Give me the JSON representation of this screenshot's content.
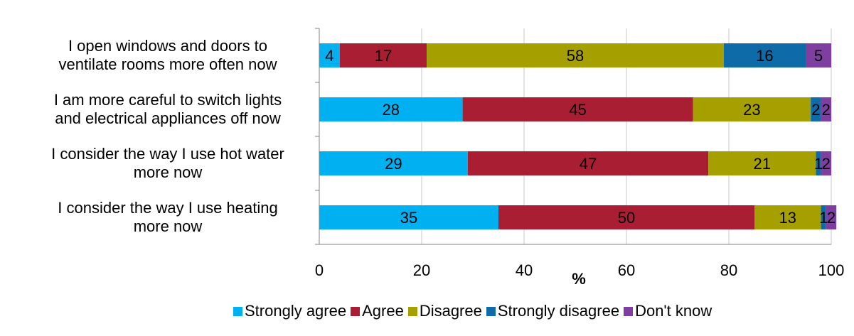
{
  "chart_data": {
    "type": "bar",
    "orientation": "horizontal",
    "stacked": true,
    "categories": [
      "I open windows and doors to ventilate rooms more often now",
      "I am more careful to switch lights and electrical appliances off now",
      "I consider the way I use hot water more now",
      "I consider the way I use heating more now"
    ],
    "category_lines": [
      [
        "I open windows and doors to",
        "ventilate rooms more often now"
      ],
      [
        "I am more careful to switch lights",
        "and electrical appliances off now"
      ],
      [
        "I consider the way I use hot water",
        "more now"
      ],
      [
        "I consider the way I use heating",
        "more now"
      ]
    ],
    "series": [
      {
        "name": "Strongly agree",
        "color": "#00B0F0",
        "values": [
          4,
          28,
          29,
          35
        ],
        "labels": [
          "4",
          "28",
          "29",
          "35"
        ]
      },
      {
        "name": "Agree",
        "color": "#AA1E33",
        "values": [
          17,
          45,
          47,
          50
        ],
        "labels": [
          "17",
          "45",
          "47",
          "50"
        ]
      },
      {
        "name": "Disagree",
        "color": "#A5A000",
        "values": [
          58,
          23,
          21,
          13
        ],
        "labels": [
          "58",
          "23",
          "21",
          "13"
        ]
      },
      {
        "name": "Strongly disagree",
        "color": "#0E6BA8",
        "values": [
          16,
          2,
          1,
          1
        ],
        "labels": [
          "16",
          "2",
          "1",
          "1"
        ]
      },
      {
        "name": "Don't know",
        "color": "#7F3FA0",
        "values": [
          5,
          2,
          2,
          2
        ],
        "labels": [
          "5",
          "2",
          "2",
          "2"
        ]
      }
    ],
    "xlabel": "%",
    "xlim": [
      0,
      100
    ],
    "xticks": [
      "0",
      "20",
      "40",
      "60",
      "80",
      "100"
    ],
    "grid": true,
    "legend": "bottom"
  }
}
